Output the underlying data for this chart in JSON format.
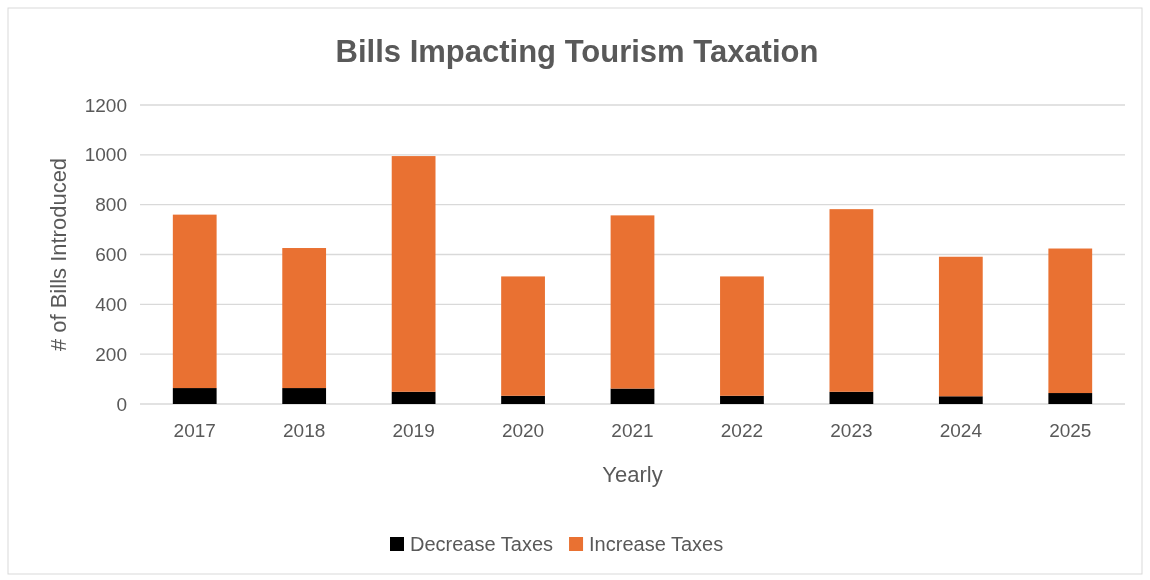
{
  "chart_data": {
    "type": "bar",
    "title": "Bills Impacting Tourism Taxation",
    "xlabel": "Yearly",
    "ylabel": "# of Bills Introduced",
    "categories": [
      "2017",
      "2018",
      "2019",
      "2020",
      "2021",
      "2022",
      "2023",
      "2024",
      "2025"
    ],
    "series": [
      {
        "name": "Decrease Taxes",
        "color": "#000000",
        "values": [
          64,
          64,
          49,
          33,
          62,
          33,
          49,
          31,
          44
        ]
      },
      {
        "name": "Increase Taxes",
        "color": "#e97132",
        "values": [
          696,
          562,
          946,
          479,
          695,
          479,
          733,
          560,
          580
        ]
      }
    ],
    "stacked": true,
    "ylim": [
      0,
      1200
    ],
    "yticks": [
      0,
      200,
      400,
      600,
      800,
      1000,
      1200
    ],
    "grid": "y",
    "legend": "bottom"
  }
}
